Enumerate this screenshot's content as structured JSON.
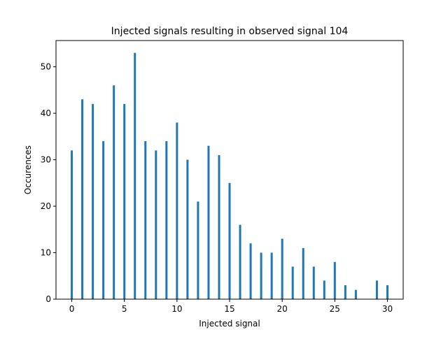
{
  "chart_data": {
    "type": "bar",
    "title": "Injected signals resulting in observed signal 104",
    "xlabel": "Injected signal",
    "ylabel": "Occurences",
    "xlim": [
      -1.5,
      31.5
    ],
    "ylim": [
      0,
      55.65
    ],
    "xticks": [
      0,
      5,
      10,
      15,
      20,
      25,
      30
    ],
    "yticks": [
      0,
      10,
      20,
      30,
      40,
      50
    ],
    "grid": false,
    "bar_color": "#1f77b4",
    "x": [
      0,
      1,
      2,
      3,
      4,
      5,
      6,
      7,
      8,
      9,
      10,
      11,
      12,
      13,
      14,
      15,
      16,
      17,
      18,
      19,
      20,
      21,
      22,
      23,
      24,
      25,
      26,
      27,
      28,
      29,
      30
    ],
    "values": [
      32,
      43,
      42,
      34,
      46,
      42,
      53,
      34,
      32,
      34,
      38,
      30,
      21,
      33,
      31,
      25,
      16,
      12,
      10,
      10,
      13,
      7,
      11,
      7,
      4,
      8,
      3,
      2,
      0,
      4,
      3
    ]
  }
}
